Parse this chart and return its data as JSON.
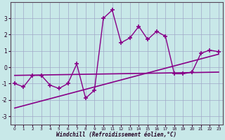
{
  "xlabel": "Windchill (Refroidissement éolien,°C)",
  "background_color": "#c8e8e8",
  "grid_color": "#a0a8c8",
  "line_color": "#880088",
  "x_values": [
    0,
    1,
    2,
    3,
    4,
    5,
    6,
    7,
    8,
    9,
    10,
    11,
    12,
    13,
    14,
    15,
    16,
    17,
    18,
    19,
    20,
    21,
    22,
    23
  ],
  "y_main": [
    -1.0,
    -1.2,
    -0.5,
    -0.5,
    -1.1,
    -1.3,
    -1.0,
    0.2,
    -1.9,
    -1.4,
    3.0,
    3.5,
    1.5,
    1.8,
    2.5,
    1.7,
    2.2,
    1.9,
    -0.4,
    -0.4,
    -0.3,
    0.85,
    1.05,
    0.95
  ],
  "y_trend1_x": [
    0,
    23
  ],
  "y_trend1_y": [
    -0.5,
    -0.3
  ],
  "y_trend2_x": [
    0,
    23
  ],
  "y_trend2_y": [
    -2.5,
    0.8
  ],
  "ylim": [
    -3.5,
    4.0
  ],
  "yticks": [
    -3,
    -2,
    -1,
    0,
    1,
    2,
    3
  ],
  "xlim": [
    -0.5,
    23.5
  ],
  "xticks": [
    0,
    1,
    2,
    3,
    4,
    5,
    6,
    7,
    8,
    9,
    10,
    11,
    12,
    13,
    14,
    15,
    16,
    17,
    18,
    19,
    20,
    21,
    22,
    23
  ]
}
